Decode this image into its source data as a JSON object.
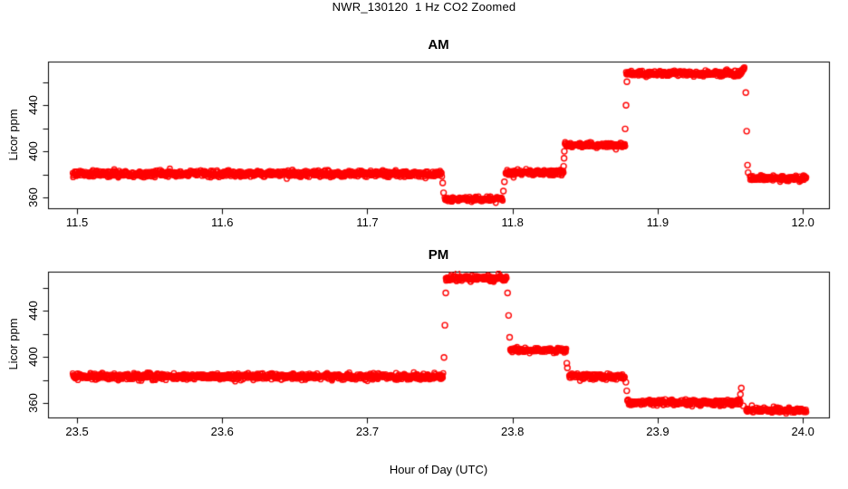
{
  "title": "NWR_130120  1 Hz CO2 Zoomed",
  "xlabel": "Hour of Day (UTC)",
  "colors": {
    "points": "#ff0000",
    "axis": "#000000",
    "background": "#ffffff"
  },
  "marker": "open-circle",
  "chart_data": [
    {
      "type": "scatter",
      "title": "AM",
      "ylabel": "Licor ppm",
      "xlim": [
        11.48,
        12.018
      ],
      "ylim": [
        350.5,
        478
      ],
      "sample_rate_hz": 1,
      "x_ticks": [
        {
          "value": 11.5,
          "label": "11.5"
        },
        {
          "value": 11.6,
          "label": "11.6"
        },
        {
          "value": 11.7,
          "label": "11.7"
        },
        {
          "value": 11.8,
          "label": "11.8"
        },
        {
          "value": 11.9,
          "label": "11.9"
        },
        {
          "value": 12.0,
          "label": "12.0"
        }
      ],
      "y_ticks": [
        {
          "value": 360,
          "label": "360"
        },
        {
          "value": 380,
          "label": ""
        },
        {
          "value": 400,
          "label": "400"
        },
        {
          "value": 420,
          "label": ""
        },
        {
          "value": 440,
          "label": "440"
        },
        {
          "value": 460,
          "label": ""
        }
      ],
      "segments": [
        {
          "t0": 11.497,
          "t1": 11.7515,
          "ppm": 380.5,
          "noise": 1.25
        },
        {
          "t0": 11.7532,
          "t1": 11.7934,
          "ppm": 358.5,
          "noise": 0.9
        },
        {
          "t0": 11.7952,
          "t1": 11.8352,
          "ppm": 381.5,
          "noise": 1.1
        },
        {
          "t0": 11.836,
          "t1": 11.8778,
          "ppm": 405.5,
          "noise": 1.0
        },
        {
          "t0": 11.8782,
          "t1": 11.957,
          "ppm": 467.5,
          "noise": 1.15
        },
        {
          "t0": 11.957,
          "t1": 11.96,
          "ppm": 468.5,
          "ppm_end": 473,
          "noise": 0.7
        },
        {
          "t0": 11.9635,
          "t1": 12.0025,
          "ppm": 376.5,
          "noise": 1.15
        }
      ],
      "transition_points": [
        {
          "t": 11.7519,
          "ppm": 372.5
        },
        {
          "t": 11.7525,
          "ppm": 364
        },
        {
          "t": 11.7937,
          "ppm": 365.5
        },
        {
          "t": 11.7944,
          "ppm": 373.5
        },
        {
          "t": 11.8352,
          "ppm": 387
        },
        {
          "t": 11.8355,
          "ppm": 394
        },
        {
          "t": 11.8357,
          "ppm": 400
        },
        {
          "t": 11.8776,
          "ppm": 419.5
        },
        {
          "t": 11.8782,
          "ppm": 440
        },
        {
          "t": 11.8788,
          "ppm": 460.5
        },
        {
          "t": 11.9607,
          "ppm": 451
        },
        {
          "t": 11.9613,
          "ppm": 417.5
        },
        {
          "t": 11.9619,
          "ppm": 388
        },
        {
          "t": 11.9623,
          "ppm": 381.5
        }
      ]
    },
    {
      "type": "scatter",
      "title": "PM",
      "ylabel": "Licor ppm",
      "xlim": [
        23.48,
        24.018
      ],
      "ylim": [
        347.4,
        474
      ],
      "sample_rate_hz": 1,
      "x_ticks": [
        {
          "value": 23.5,
          "label": "23.5"
        },
        {
          "value": 23.6,
          "label": "23.6"
        },
        {
          "value": 23.7,
          "label": "23.7"
        },
        {
          "value": 23.8,
          "label": "23.8"
        },
        {
          "value": 23.9,
          "label": "23.9"
        },
        {
          "value": 24.0,
          "label": "24.0"
        }
      ],
      "y_ticks": [
        {
          "value": 360,
          "label": "360"
        },
        {
          "value": 380,
          "label": ""
        },
        {
          "value": 400,
          "label": "400"
        },
        {
          "value": 420,
          "label": ""
        },
        {
          "value": 440,
          "label": "440"
        },
        {
          "value": 460,
          "label": ""
        }
      ],
      "segments": [
        {
          "t0": 23.497,
          "t1": 23.7525,
          "ppm": 383,
          "noise": 1.25
        },
        {
          "t0": 23.754,
          "t1": 23.7962,
          "ppm": 468.3,
          "noise": 1.15
        },
        {
          "t0": 23.7984,
          "t1": 23.8371,
          "ppm": 405.8,
          "noise": 1.0
        },
        {
          "t0": 23.839,
          "t1": 23.8776,
          "ppm": 383.6,
          "ppm_end": 382.3,
          "noise": 1.15
        },
        {
          "t0": 23.879,
          "t1": 23.9572,
          "ppm": 360.3,
          "noise": 1.1
        },
        {
          "t0": 23.961,
          "t1": 24.0025,
          "ppm": 353.8,
          "noise": 1.0
        }
      ],
      "transition_points": [
        {
          "t": 23.7528,
          "ppm": 399.5
        },
        {
          "t": 23.7534,
          "ppm": 427.5
        },
        {
          "t": 23.754,
          "ppm": 455.5
        },
        {
          "t": 23.7966,
          "ppm": 455.5
        },
        {
          "t": 23.7973,
          "ppm": 436
        },
        {
          "t": 23.798,
          "ppm": 417
        },
        {
          "t": 23.8374,
          "ppm": 394.5
        },
        {
          "t": 23.8378,
          "ppm": 390.5
        },
        {
          "t": 23.8781,
          "ppm": 378
        },
        {
          "t": 23.8787,
          "ppm": 370.5
        },
        {
          "t": 23.957,
          "ppm": 367.5
        },
        {
          "t": 23.9576,
          "ppm": 373
        },
        {
          "t": 23.959,
          "ppm": 357.5
        }
      ]
    }
  ]
}
